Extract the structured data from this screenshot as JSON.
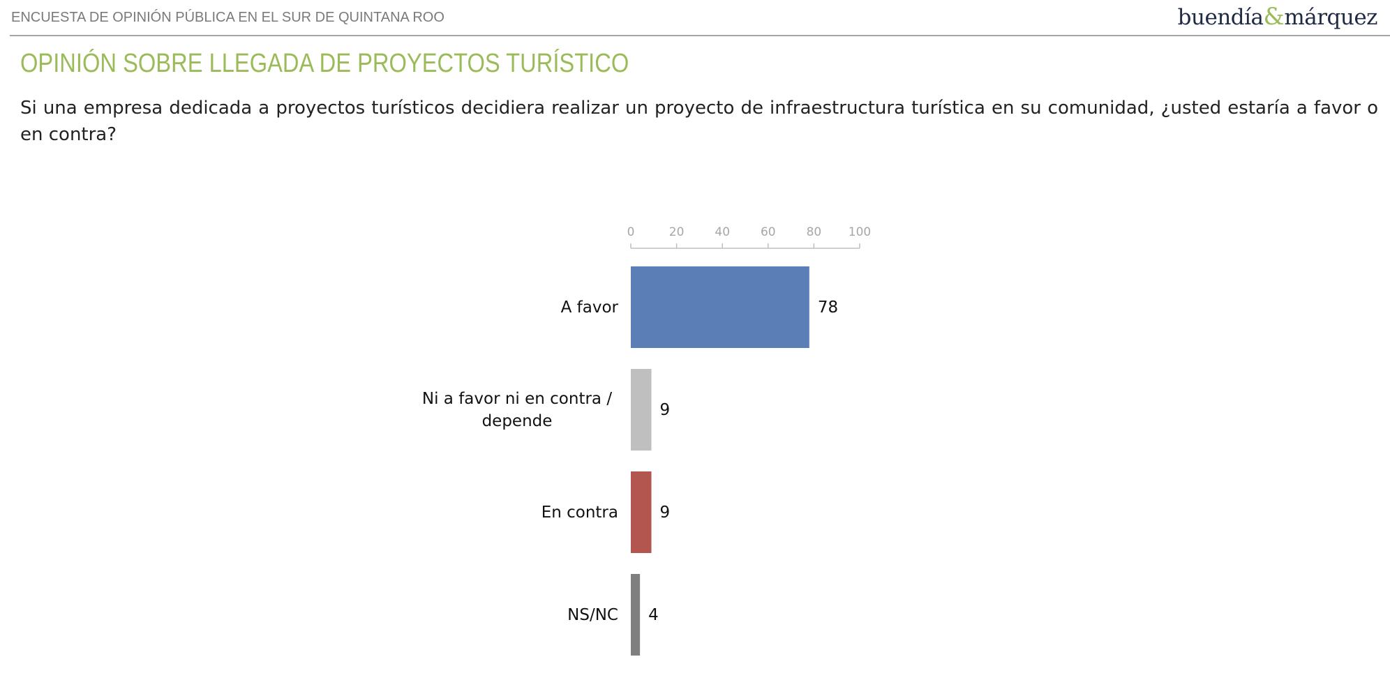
{
  "header": {
    "survey": "ENCUESTA DE OPINIÓN PÚBLICA EN EL SUR DE QUINTANA ROO",
    "logo": [
      "buendía",
      "&",
      "márquez"
    ]
  },
  "chart_data": {
    "type": "bar",
    "orientation": "horizontal",
    "title": "OPINIÓN SOBRE LLEGADA DE PROYECTOS TURÍSTICO",
    "subtitle": "Si una empresa dedicada a proyectos turísticos decidiera realizar un proyecto de infraestructura turística en su comunidad, ¿usted estaría a favor o en contra?",
    "categories": [
      "A favor",
      "Ni a favor ni en contra / depende",
      "En contra",
      "NS/NC"
    ],
    "values": [
      78,
      9,
      9,
      4
    ],
    "colors": [
      "#5a7fb7",
      "#bfbfbf",
      "#b45650",
      "#7f7f7f"
    ],
    "xlim": [
      0,
      100
    ],
    "xticks": [
      0,
      20,
      40,
      60,
      80,
      100
    ]
  }
}
